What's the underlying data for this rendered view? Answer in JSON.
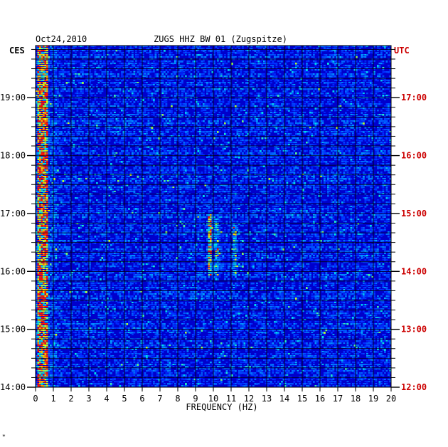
{
  "chart_data": {
    "type": "heatmap",
    "title": "ZUGS HHZ BW 01 (Zugspitze)",
    "date": "Oct24,2010",
    "left_tz": "CES",
    "right_tz": "UTC",
    "xlabel": "FREQUENCY (HZ)",
    "xlim": [
      0,
      20
    ],
    "x_ticks": [
      "0",
      "1",
      "2",
      "3",
      "4",
      "5",
      "6",
      "7",
      "8",
      "9",
      "10",
      "11",
      "12",
      "13",
      "14",
      "15",
      "16",
      "17",
      "18",
      "19",
      "20"
    ],
    "y_left_range_hours": [
      14.0,
      19.9
    ],
    "y_left_ticks": [
      {
        "hour": 19,
        "label": "19:00"
      },
      {
        "hour": 18,
        "label": "18:00"
      },
      {
        "hour": 17,
        "label": "17:00"
      },
      {
        "hour": 16,
        "label": "16:00"
      },
      {
        "hour": 15,
        "label": "15:00"
      },
      {
        "hour": 14,
        "label": "14:00"
      }
    ],
    "y_right_ticks": [
      {
        "hour": 17,
        "label": "17:00"
      },
      {
        "hour": 16,
        "label": "16:00"
      },
      {
        "hour": 15,
        "label": "15:00"
      },
      {
        "hour": 14,
        "label": "14:00"
      },
      {
        "hour": 13,
        "label": "13:00"
      },
      {
        "hour": 12,
        "label": "12:00"
      }
    ],
    "utc_offset_hours": -2,
    "grid": true,
    "colors": {
      "background": "#0000cc",
      "low": "#0022ee",
      "mid": "#00ccff",
      "high": "#ffff00",
      "peak": "#ff2200",
      "right_axis": "#cc0000",
      "text": "#000000"
    },
    "features": [
      {
        "name": "low-frequency-band",
        "freq_range": [
          0.1,
          0.7
        ],
        "intensity": "high"
      },
      {
        "name": "band-9.8hz",
        "freq": 9.8,
        "time_range": [
          15.9,
          17.0
        ],
        "intensity": "high"
      },
      {
        "name": "band-10.2hz",
        "freq": 10.2,
        "time_range": [
          15.9,
          16.9
        ],
        "intensity": "medium"
      },
      {
        "name": "band-11.2hz",
        "freq": 11.2,
        "time_range": [
          15.9,
          16.8
        ],
        "intensity": "medium"
      }
    ]
  },
  "footer_mark": "*"
}
